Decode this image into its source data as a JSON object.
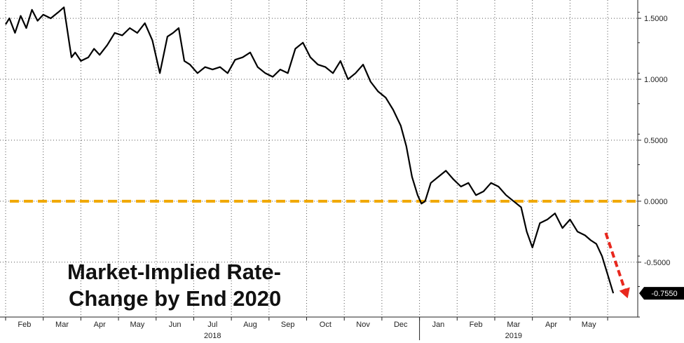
{
  "chart_data": {
    "type": "line",
    "title_lines": [
      "Market-Implied Rate-",
      "Change by End 2020"
    ],
    "x_tick_labels": [
      "Feb",
      "Mar",
      "Apr",
      "May",
      "Jun",
      "Jul",
      "Aug",
      "Sep",
      "Oct",
      "Nov",
      "Dec",
      "Jan",
      "Feb",
      "Mar",
      "Apr",
      "May"
    ],
    "x_years": [
      "2018",
      "2019"
    ],
    "y_tick_labels": [
      "1.5000",
      "1.0000",
      "0.5000",
      "0.0000",
      "-0.5000"
    ],
    "y_ticks": [
      1.5,
      1.0,
      0.5,
      0.0,
      -0.5
    ],
    "ylim": [
      -0.95,
      1.65
    ],
    "xlim": [
      0,
      16.8
    ],
    "grid": true,
    "reference_line": {
      "value": 0.0,
      "color": "#f0a800"
    },
    "last_value": {
      "value": -0.755,
      "label": "-0.7550"
    },
    "trend_arrow_color": "#e8281e",
    "line_color": "#000000",
    "series": [
      {
        "x": [
          0.0,
          0.1,
          0.25,
          0.4,
          0.55,
          0.7,
          0.85,
          1.0,
          1.2,
          1.4,
          1.55,
          1.7,
          1.75,
          1.85,
          2.0,
          2.2,
          2.35,
          2.5,
          2.7,
          2.9,
          3.1,
          3.3,
          3.5,
          3.7,
          3.9,
          4.1,
          4.3,
          4.45,
          4.6,
          4.75,
          4.9,
          5.1,
          5.3,
          5.5,
          5.7,
          5.9,
          6.1,
          6.3,
          6.5,
          6.7,
          6.9,
          7.1,
          7.3,
          7.5,
          7.7,
          7.9,
          8.1,
          8.3,
          8.5,
          8.7,
          8.9,
          9.1,
          9.3,
          9.5,
          9.7,
          9.9,
          10.1,
          10.3,
          10.5,
          10.65,
          10.8,
          10.95,
          11.05,
          11.15,
          11.3,
          11.5,
          11.7,
          11.9,
          12.1,
          12.3,
          12.5,
          12.7,
          12.9,
          13.1,
          13.3,
          13.5,
          13.7,
          13.85,
          14.0,
          14.2,
          14.4,
          14.6,
          14.8,
          15.0,
          15.2,
          15.4,
          15.55,
          15.7,
          15.85,
          16.0,
          16.15
        ],
        "y": [
          1.45,
          1.5,
          1.38,
          1.52,
          1.42,
          1.57,
          1.48,
          1.53,
          1.5,
          1.55,
          1.59,
          1.28,
          1.18,
          1.22,
          1.15,
          1.18,
          1.25,
          1.2,
          1.28,
          1.38,
          1.36,
          1.42,
          1.38,
          1.46,
          1.32,
          1.05,
          1.35,
          1.38,
          1.42,
          1.15,
          1.12,
          1.05,
          1.1,
          1.08,
          1.1,
          1.05,
          1.16,
          1.18,
          1.22,
          1.1,
          1.05,
          1.02,
          1.08,
          1.05,
          1.25,
          1.3,
          1.18,
          1.12,
          1.1,
          1.05,
          1.15,
          1.0,
          1.05,
          1.12,
          0.98,
          0.9,
          0.85,
          0.75,
          0.62,
          0.45,
          0.2,
          0.05,
          -0.02,
          0.0,
          0.15,
          0.2,
          0.25,
          0.18,
          0.12,
          0.15,
          0.05,
          0.08,
          0.15,
          0.12,
          0.05,
          0.0,
          -0.05,
          -0.25,
          -0.38,
          -0.18,
          -0.15,
          -0.1,
          -0.22,
          -0.15,
          -0.25,
          -0.28,
          -0.32,
          -0.35,
          -0.45,
          -0.6,
          -0.755
        ]
      }
    ]
  }
}
